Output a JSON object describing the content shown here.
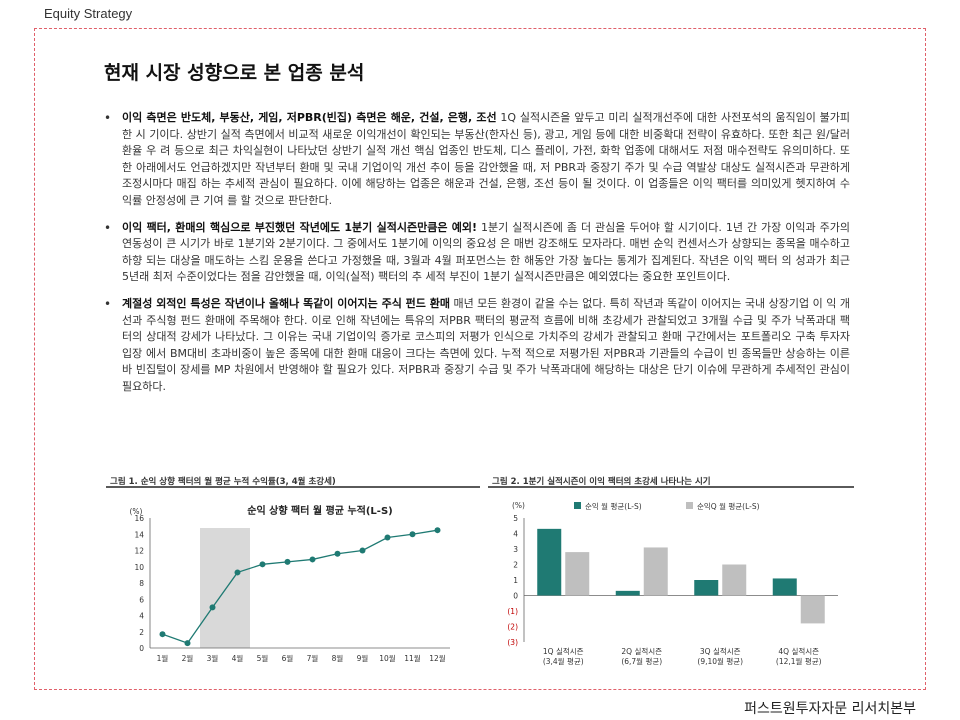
{
  "header": {
    "label": "Equity Strategy"
  },
  "title": "현재 시장 성향으로 본 업종 분석",
  "bullets": [
    {
      "bold": "이익 측면은 반도체, 부동산, 게임, 저PBR(빈집) 측면은 해운, 건설, 은행, 조선",
      "text": " 1Q 실적시즌을 앞두고 미리 실적개선주에 대한 사전포석의 움직임이 불가피한 시 기이다. 상반기 실적 측면에서 비교적 새로운 이익개선이 확인되는 부동산(한자신 등), 광고, 게임 등에 대한 비중확대 전략이 유효하다. 또한 최근 원/달러 환율 우 려 등으로 최근 차익실현이 나타났던 상반기 실적 개선 핵심 업종인 반도체, 디스 플레이, 가전, 화학 업종에 대해서도 저점 매수전략도 유의미하다. 또한 아래에서도 언급하겠지만 작년부터 환매 및 국내 기업이익 개선 추이 등을 감안했을 때, 저 PBR과 중장기 주가 및 수급 역발상 대상도 실적시즌과 무관하게 조정시마다 매집 하는 추세적 관심이 필요하다. 이에 해당하는 업종은 해운과 건설, 은행, 조선 등이 될 것이다. 이 업종들은 이익 팩터를 의미있게 헷지하여 수익률 안정성에 큰 기여 를 할 것으로 판단한다."
    },
    {
      "bold": "이익 팩터, 환매의 핵심으로 부진했던 작년에도 1분기 실적시즌만큼은 예외!",
      "text": " 1분기 실적시즌에 좀 더 관심을 두어야 할 시기이다. 1년 간 가장 이익과 주가의 연동성이 큰 시기가 바로 1분기와 2분기이다. 그 중에서도 1분기에 이익의 중요성 은 매번 강조해도 모자라다. 매번 순익 컨센서스가 상향되는 종목을 매수하고 하향 되는 대상을 매도하는 스킴 운용을 쓴다고 가정했을 때, 3월과 4월 퍼포먼스는 한 해동안 가장 높다는 통계가 집계된다. 작년은 이익 팩터 의 성과가 최근 5년래 최저 수준이었다는 점을 감안했을 때, 이익(실적) 팩터의 추 세적 부진이 1분기 실적시즌만큼은 예외였다는 중요한 포인트이다."
    },
    {
      "bold": "계절성 외적인 특성은 작년이나 올해나 똑같이 이어지는 주식 펀드 환매",
      "text": " 매년 모든 환경이 같을 수는 없다. 특히 작년과 똑같이 이어지는 국내 상장기업 이 익 개선과 주식형 펀드 환매에 주목해야 한다. 이로 인해 작년에는 특유의 저PBR 팩터의 평균적 흐름에 비해 초강세가 관찰되었고 3개월 수급 및 주가 낙폭과대 팩 터의 상대적 강세가 나타났다. 그 이유는 국내 기업이익 증가로 코스피의 저평가 인식으로 가치주의 강세가 관찰되고 환매 구간에서는 포트폴리오 구축 투자자 입장 에서 BM대비 초과비중이 높은 종목에 대한 환매 대응이 크다는 측면에 있다. 누적 적으로 저평가된 저PBR과 기관들의 수급이 빈 종목들만 상승하는 이른바 빈집털이 장세를 MP 차원에서 반영해야 할 필요가 있다. 저PBR과 중장기 수급 및 주가 낙폭과대에 해당하는 대상은 단기 이슈에 무관하게 추세적인 관심이 필요하다."
    }
  ],
  "footer": "퍼스트원투자자문 리서치본부",
  "chart_data": [
    {
      "type": "line",
      "title": "그림 1. 순익 상향 팩터의 월 평균 누적 수익률(3, 4월 초강세)",
      "inner_title": "순익 상향 팩터 월 평균 누적(L-S)",
      "ylabel": "(%)",
      "ylim": [
        0,
        16
      ],
      "yticks": [
        "0",
        "2",
        "4",
        "6",
        "8",
        "10",
        "12",
        "14",
        "16"
      ],
      "categories": [
        "1월",
        "2월",
        "3월",
        "4월",
        "5월",
        "6월",
        "7월",
        "8월",
        "9월",
        "10월",
        "11월",
        "12월"
      ],
      "values": [
        1.7,
        0.6,
        5.0,
        9.3,
        10.3,
        10.6,
        10.9,
        11.6,
        12.0,
        13.6,
        14.0,
        14.5
      ],
      "highlight": [
        "3월",
        "4월"
      ],
      "colors": {
        "line": "#1f7a73",
        "highlight": "#d9d9d9"
      }
    },
    {
      "type": "bar",
      "title": "그림 2. 1분기 실적시즌이 이익 팩터의 초강세 나타나는 시기",
      "ylabel": "(%)",
      "ylim": [
        -3,
        5
      ],
      "yticks": [
        "5",
        "4",
        "3",
        "2",
        "1",
        "0",
        "(1)",
        "(2)",
        "(3)"
      ],
      "categories": [
        "1Q 실적시즌\n(3,4월 평균)",
        "2Q 실적시즌\n(6,7월 평균)",
        "3Q 실적시즌\n(9,10월 평균)",
        "4Q 실적시즌\n(12,1월 평균)"
      ],
      "series": [
        {
          "name": "순익 월 평균(L-S)",
          "values": [
            4.3,
            0.3,
            1.0,
            1.1
          ],
          "color": "#1f7a73"
        },
        {
          "name": "순익Q 월 평균(L-S)",
          "values": [
            2.8,
            3.1,
            2.0,
            -1.8
          ],
          "color": "#bfbfbf"
        }
      ]
    }
  ]
}
